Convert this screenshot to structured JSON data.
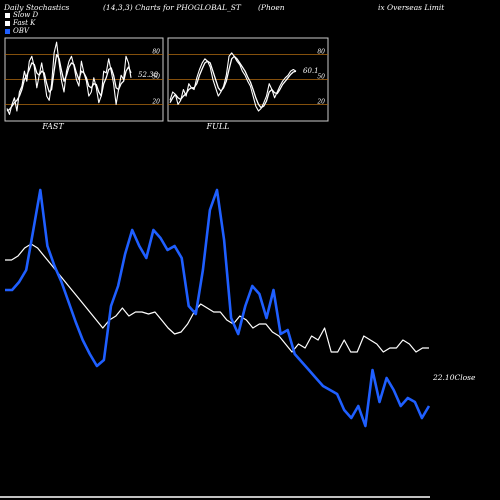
{
  "header": {
    "left": "Daily Stochastics",
    "center": "(14,3,3) Charts for PHOGLOBAL_ST",
    "right_a": "(Phoen",
    "right_b": "ix Overseas Limit"
  },
  "legend": [
    {
      "label": "Slow  D",
      "color": "#ffffff"
    },
    {
      "label": "Fast K",
      "color": "#ffffff"
    },
    {
      "label": "OBV",
      "color": "#1f5fff"
    }
  ],
  "colors": {
    "close": "#ffffff",
    "obv": "#1f5fff",
    "grid": "#b06a10",
    "panel_border": "#cccccc",
    "background": "#000000"
  },
  "chart_data": [
    {
      "type": "line",
      "title": "FAST",
      "ylim": [
        0,
        100
      ],
      "y_ticks": [
        "80",
        "50",
        "20"
      ],
      "last_value_label": "52.38",
      "series": [
        {
          "values": [
            15,
            8,
            20,
            28,
            12,
            35,
            42,
            60,
            48,
            72,
            78,
            65,
            40,
            55,
            70,
            52,
            30,
            25,
            45,
            82,
            95,
            70,
            48,
            35,
            60,
            72,
            78,
            66,
            50,
            42,
            72,
            58,
            48,
            30,
            35,
            52,
            40,
            22,
            30,
            60,
            58,
            75,
            60,
            45,
            20,
            38,
            55,
            50,
            78,
            70,
            52
          ]
        },
        {
          "values": [
            12,
            14,
            18,
            22,
            25,
            30,
            38,
            50,
            55,
            62,
            70,
            68,
            58,
            55,
            60,
            58,
            45,
            35,
            38,
            60,
            80,
            75,
            60,
            48,
            55,
            65,
            70,
            68,
            58,
            50,
            60,
            58,
            52,
            42,
            40,
            45,
            44,
            35,
            30,
            45,
            52,
            62,
            64,
            55,
            40,
            38,
            45,
            48,
            60,
            65,
            58
          ]
        }
      ]
    },
    {
      "type": "line",
      "title": "FULL",
      "ylim": [
        0,
        100
      ],
      "y_ticks": [
        "80",
        "50",
        "20"
      ],
      "last_value_label": "60.1",
      "series": [
        {
          "values": [
            25,
            35,
            32,
            20,
            25,
            38,
            30,
            45,
            40,
            38,
            52,
            62,
            70,
            75,
            72,
            65,
            50,
            40,
            30,
            35,
            42,
            55,
            78,
            82,
            78,
            72,
            68,
            60,
            55,
            48,
            42,
            30,
            18,
            12,
            15,
            22,
            30,
            45,
            38,
            28,
            35,
            42,
            48,
            52,
            55,
            60,
            62,
            60
          ]
        },
        {
          "values": [
            22,
            28,
            32,
            28,
            26,
            30,
            33,
            38,
            40,
            40,
            45,
            55,
            63,
            70,
            72,
            70,
            60,
            50,
            40,
            36,
            40,
            48,
            62,
            75,
            78,
            75,
            70,
            65,
            60,
            53,
            47,
            38,
            28,
            20,
            16,
            18,
            24,
            35,
            38,
            34,
            33,
            38,
            44,
            48,
            52,
            56,
            59,
            60
          ]
        }
      ]
    },
    {
      "type": "line",
      "ylim": [
        0,
        100
      ],
      "last_value_label": "22.10Close",
      "series": [
        {
          "values": [
            70,
            70,
            72,
            76,
            78,
            76,
            72,
            68,
            64,
            60,
            56,
            52,
            48,
            44,
            40,
            36,
            40,
            42,
            46,
            42,
            44,
            44,
            43,
            44,
            40,
            36,
            33,
            34,
            38,
            44,
            48,
            46,
            44,
            44,
            40,
            38,
            42,
            40,
            36,
            38,
            38,
            34,
            32,
            28,
            24,
            28,
            26,
            32,
            30,
            36,
            24,
            24,
            30,
            24,
            24,
            32,
            30,
            28,
            24,
            26,
            26,
            30,
            28,
            24,
            26,
            26
          ]
        },
        {
          "values": [
            70,
            70,
            74,
            80,
            100,
            120,
            92,
            82,
            74,
            64,
            54,
            45,
            38,
            32,
            35,
            62,
            72,
            88,
            100,
            92,
            86,
            100,
            96,
            90,
            92,
            86,
            62,
            58,
            80,
            110,
            120,
            95,
            56,
            48,
            62,
            72,
            68,
            56,
            70,
            48,
            50,
            38,
            34,
            30,
            26,
            22,
            20,
            18,
            10,
            6,
            12,
            2,
            30,
            14,
            26,
            20,
            12,
            16,
            14,
            6,
            12
          ]
        }
      ]
    }
  ],
  "footer": {
    "fast_label": "FAST",
    "full_label": "FULL"
  }
}
